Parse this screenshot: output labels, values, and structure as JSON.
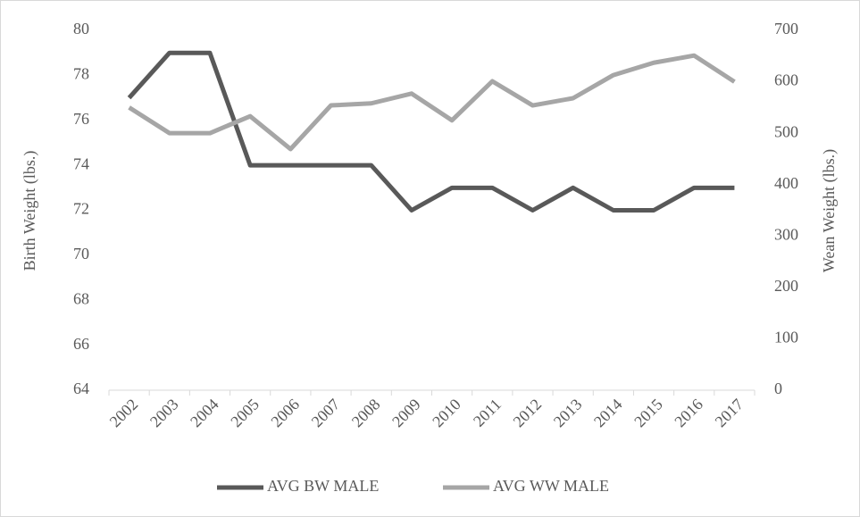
{
  "chart_data": {
    "type": "line",
    "categories": [
      "2002",
      "2003",
      "2004",
      "2005",
      "2006",
      "2007",
      "2008",
      "2009",
      "2010",
      "2011",
      "2012",
      "2013",
      "2014",
      "2015",
      "2016",
      "2017"
    ],
    "y_label": "Birth  Weight (lbs.)",
    "y2_label": "Wean Weight (lbs.)",
    "ylim": [
      64,
      80
    ],
    "yticks": [
      64,
      66,
      68,
      70,
      72,
      74,
      76,
      78,
      80
    ],
    "y2lim": [
      0,
      700
    ],
    "y2ticks": [
      0,
      100,
      200,
      300,
      400,
      500,
      600,
      700
    ],
    "grid": false,
    "legend": "bottom",
    "series": [
      {
        "name": "AVG BW MALE",
        "color": "#595959",
        "values": [
          77,
          79,
          79,
          74,
          74,
          74,
          74,
          72,
          73,
          73,
          72,
          73,
          72,
          72,
          73,
          73
        ]
      },
      {
        "name": "AVG WW MALE",
        "color": "#a6a6a6",
        "axis": "y2",
        "values": [
          550,
          500,
          500,
          533,
          469,
          554,
          558,
          577,
          525,
          601,
          554,
          568,
          613,
          637,
          651,
          600
        ]
      }
    ]
  }
}
